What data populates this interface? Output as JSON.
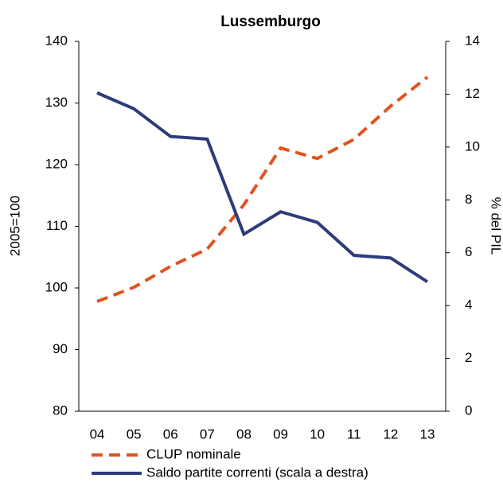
{
  "chart_data": {
    "type": "line",
    "title": "Lussemburgo",
    "ylabel": "2005=100",
    "y2label": "% del PIL",
    "categories": [
      "04",
      "05",
      "06",
      "07",
      "08",
      "09",
      "10",
      "11",
      "12",
      "13"
    ],
    "series": [
      {
        "name": "CLUP nominale",
        "color": "#e0531f",
        "dashed": true,
        "axis": "y",
        "values": [
          97.8,
          100.1,
          103.5,
          106.3,
          113.5,
          122.7,
          121.0,
          124.1,
          129.5,
          134.2
        ]
      },
      {
        "name": "Saldo partite correnti (scala a destra)",
        "color": "#2e3b7a",
        "dashed": false,
        "axis": "y2",
        "values": [
          12.05,
          11.45,
          10.4,
          10.3,
          6.7,
          7.55,
          7.15,
          5.9,
          5.8,
          4.9
        ]
      }
    ],
    "ylim": [
      80,
      140
    ],
    "yticks": [
      80,
      90,
      100,
      110,
      120,
      130,
      140
    ],
    "y2lim": [
      0,
      14
    ],
    "y2ticks": [
      0,
      2,
      4,
      6,
      8,
      10,
      12,
      14
    ],
    "grid": false,
    "legend": "bottom"
  }
}
